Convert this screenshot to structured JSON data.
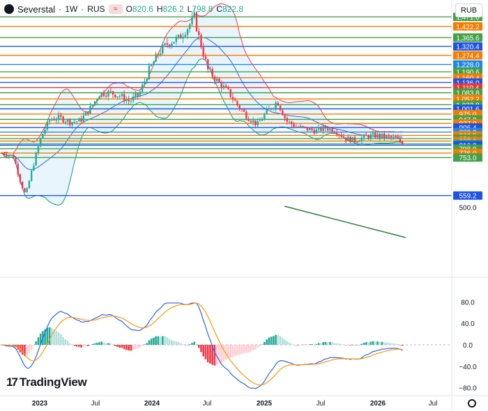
{
  "header": {
    "symbol": "Severstal",
    "sep1": "·",
    "interval": "1W",
    "sep2": "·",
    "exchange": "RUS",
    "toggle_glyph": "≈",
    "open_label": "O",
    "open": "820.6",
    "high_label": "H",
    "high": "826.2",
    "low_label": "L",
    "low": "798.8",
    "close_label": "C",
    "close": "822.8"
  },
  "currency": "RUB",
  "logo_text": "TradingView",
  "colors": {
    "up": "#22ab94",
    "down": "#f23645",
    "macd": "#2962ff",
    "signal": "#ff9800",
    "bb_upper": "#f23645",
    "bb_lower": "#089981",
    "bb_basis": "#2962ff",
    "bb_fill": "#e3f2fd"
  },
  "chart_data": [
    {
      "type": "candlestick",
      "price_range": [
        500,
        1520
      ],
      "x_tick_labels": [
        "2023",
        "Jul",
        "2024",
        "Jul",
        "2025",
        "Jul",
        "2026",
        "Jul"
      ],
      "axis_ticks": [
        {
          "value": 500,
          "label": "500.0"
        }
      ],
      "close_series": [
        {
          "date": "2022-10-03",
          "close": 775
        },
        {
          "date": "2022-11-07",
          "close": 760
        },
        {
          "date": "2022-12-01",
          "close": 620
        },
        {
          "date": "2022-12-15",
          "close": 560
        },
        {
          "date": "2023-01-05",
          "close": 700
        },
        {
          "date": "2023-02-01",
          "close": 860
        },
        {
          "date": "2023-03-01",
          "close": 950
        },
        {
          "date": "2023-04-01",
          "close": 955
        },
        {
          "date": "2023-05-01",
          "close": 935
        },
        {
          "date": "2023-06-01",
          "close": 940
        },
        {
          "date": "2023-07-01",
          "close": 1000
        },
        {
          "date": "2023-08-01",
          "close": 1080
        },
        {
          "date": "2023-09-01",
          "close": 1085
        },
        {
          "date": "2023-10-01",
          "close": 1070
        },
        {
          "date": "2023-11-01",
          "close": 1040
        },
        {
          "date": "2023-12-01",
          "close": 1075
        },
        {
          "date": "2024-01-01",
          "close": 1200
        },
        {
          "date": "2024-02-01",
          "close": 1290
        },
        {
          "date": "2024-03-01",
          "close": 1340
        },
        {
          "date": "2024-04-01",
          "close": 1360
        },
        {
          "date": "2024-05-01",
          "close": 1420
        },
        {
          "date": "2024-05-20",
          "close": 1471
        },
        {
          "date": "2024-06-01",
          "close": 1380
        },
        {
          "date": "2024-07-01",
          "close": 1200
        },
        {
          "date": "2024-08-01",
          "close": 1140
        },
        {
          "date": "2024-09-01",
          "close": 1090
        },
        {
          "date": "2024-10-01",
          "close": 1020
        },
        {
          "date": "2024-11-01",
          "close": 960
        },
        {
          "date": "2024-12-01",
          "close": 920
        },
        {
          "date": "2025-01-01",
          "close": 990
        },
        {
          "date": "2025-02-01",
          "close": 1040
        },
        {
          "date": "2025-03-01",
          "close": 940
        },
        {
          "date": "2025-04-01",
          "close": 910
        },
        {
          "date": "2025-05-01",
          "close": 900
        },
        {
          "date": "2025-06-01",
          "close": 890
        },
        {
          "date": "2025-07-01",
          "close": 905
        },
        {
          "date": "2025-08-01",
          "close": 890
        },
        {
          "date": "2025-09-01",
          "close": 850
        },
        {
          "date": "2025-10-01",
          "close": 840
        },
        {
          "date": "2025-11-01",
          "close": 860
        },
        {
          "date": "2025-12-01",
          "close": 866
        },
        {
          "date": "2026-01-01",
          "close": 860
        },
        {
          "date": "2026-02-01",
          "close": 850
        },
        {
          "date": "2026-03-01",
          "close": 822.8
        }
      ],
      "levels": [
        {
          "label": "1,471.0",
          "value": 1471.0,
          "color": "#43a047"
        },
        {
          "label": "1,422.2",
          "value": 1422.2,
          "color": "#f57c00"
        },
        {
          "label": "1,365.6",
          "value": 1365.6,
          "color": "#43a047"
        },
        {
          "label": "1,320.4",
          "value": 1320.4,
          "color": "#1e53e5"
        },
        {
          "label": "1,274.4",
          "value": 1274.4,
          "color": "#f57c00"
        },
        {
          "label": "1,228.0",
          "value": 1228.0,
          "color": "#1e88e5"
        },
        {
          "label": "1,190.6",
          "value": 1190.6,
          "color": "#43a047"
        },
        {
          "label": "1,160.4",
          "value": 1160.4,
          "color": "#f57c00"
        },
        {
          "label": "1,136.0",
          "value": 1136.0,
          "color": "#1e53e5"
        },
        {
          "label": "1,110.4",
          "value": 1110.4,
          "color": "#e53935"
        },
        {
          "label": "1,083.8",
          "value": 1083.8,
          "color": "#43a047"
        },
        {
          "label": "1,052.2",
          "value": 1052.2,
          "color": "#f57c00"
        },
        {
          "label": "1,022.8",
          "value": 1022.8,
          "color": "#43a047"
        },
        {
          "label": "1,001.6",
          "value": 1001.6,
          "color": "#1e53e5"
        },
        {
          "label": "975.0",
          "value": 975.0,
          "color": "#f57c00"
        },
        {
          "label": "947.8",
          "value": 947.8,
          "color": "#43a047"
        },
        {
          "label": "927.0",
          "value": 927.0,
          "color": "#f57c00"
        },
        {
          "label": "906.4",
          "value": 906.4,
          "color": "#1e53e5"
        },
        {
          "label": "883.0",
          "value": 883.0,
          "color": "#1e88e5"
        },
        {
          "label": "866.0",
          "value": 866.0,
          "color": "#f57c00"
        },
        {
          "label": "850.0",
          "value": 850.0,
          "color": "#43a047"
        },
        {
          "label": "837.2",
          "value": 837.2,
          "color": "#f57c00"
        },
        {
          "label": "822.8",
          "value": 822.8,
          "color": "#22ab94"
        },
        {
          "label": "816.2",
          "value": 816.2,
          "color": "#1e53e5"
        },
        {
          "label": "798.0",
          "value": 798.0,
          "color": "#43a047"
        },
        {
          "label": "776.0",
          "value": 776.0,
          "color": "#f57c00"
        },
        {
          "label": "753.0",
          "value": 753.0,
          "color": "#43a047"
        },
        {
          "label": "559.2",
          "value": 559.2,
          "color": "#1e53e5"
        }
      ],
      "current_price": {
        "value": 822.8,
        "label": "822.8"
      }
    },
    {
      "type": "macd",
      "y_range": [
        -95,
        80
      ],
      "axis_ticks": [
        {
          "value": 80,
          "label": "80.0"
        },
        {
          "value": 40,
          "label": "40.0"
        },
        {
          "value": 0,
          "label": "0.0"
        },
        {
          "value": -40,
          "label": "−40.0"
        },
        {
          "value": -80,
          "label": "−80.0"
        }
      ],
      "zero_line": 0
    }
  ]
}
